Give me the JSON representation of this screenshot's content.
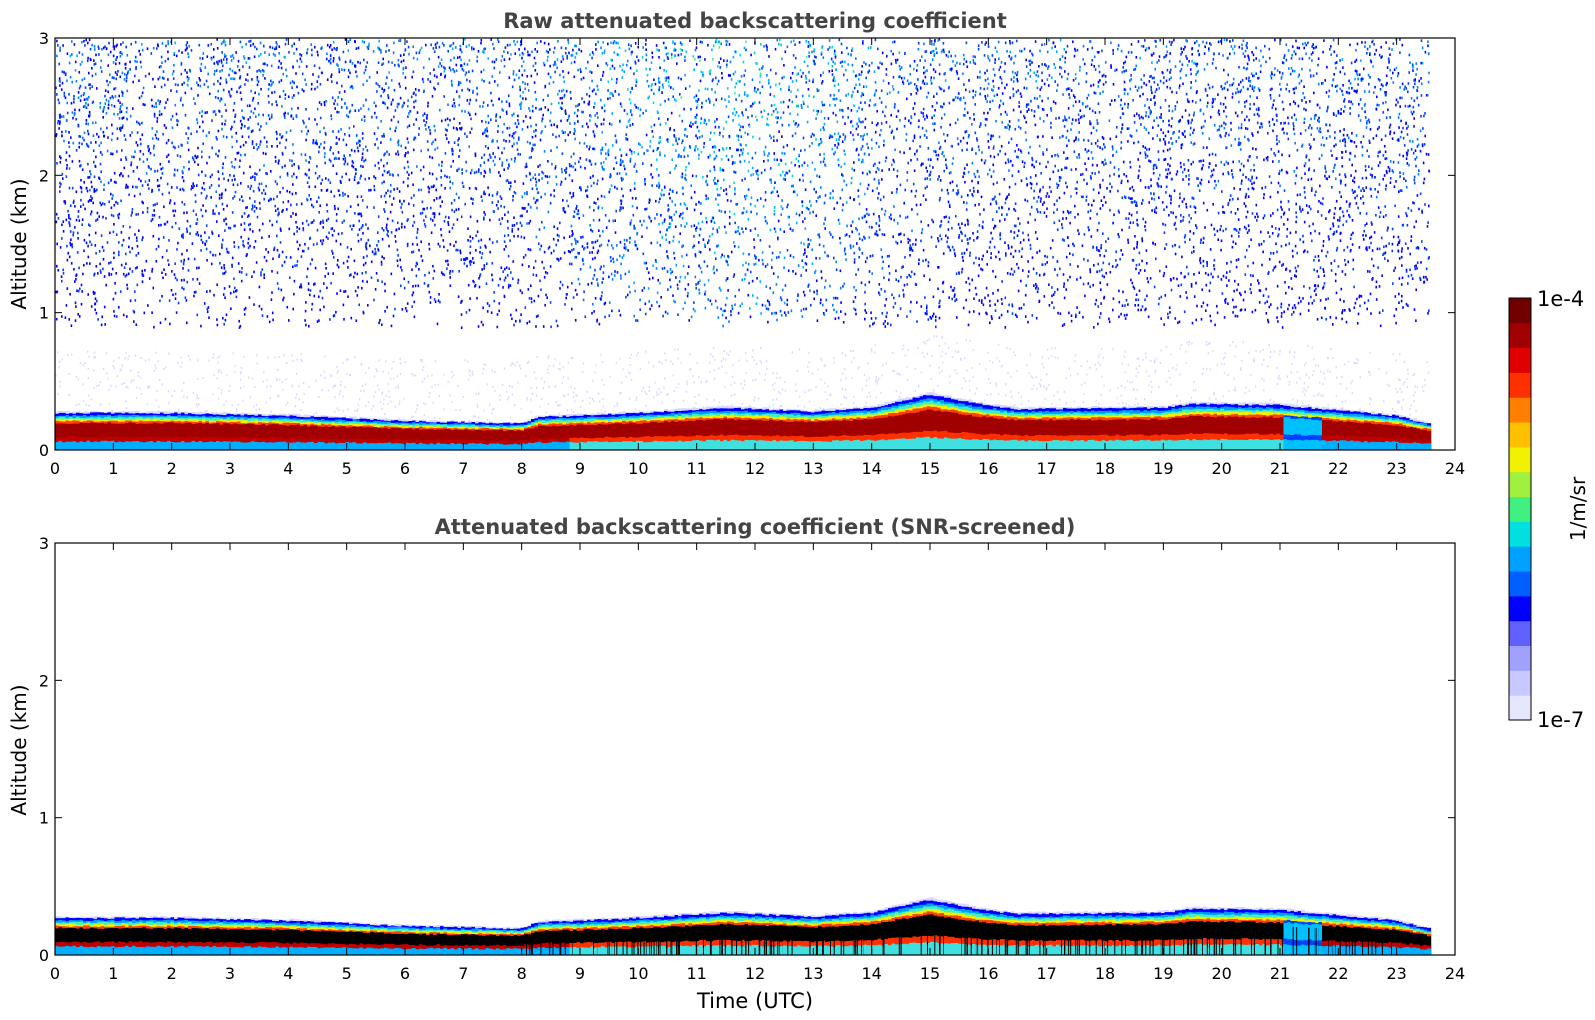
{
  "chart_data": [
    {
      "type": "heatmap",
      "title": "Raw attenuated backscattering coefficient",
      "xlabel": "",
      "ylabel": "Altitude (km)",
      "xlim": [
        0,
        24
      ],
      "ylim": [
        0,
        3
      ],
      "x_ticks": [
        "0",
        "1",
        "2",
        "3",
        "4",
        "5",
        "6",
        "7",
        "8",
        "9",
        "10",
        "11",
        "12",
        "13",
        "14",
        "15",
        "16",
        "17",
        "18",
        "19",
        "20",
        "21",
        "22",
        "23",
        "24"
      ],
      "y_ticks": [
        "0",
        "1",
        "2",
        "3"
      ],
      "data_end_hour": 23.55,
      "features": {
        "boundary_layer_top_km": [
          [
            0,
            0.28
          ],
          [
            2,
            0.28
          ],
          [
            4,
            0.26
          ],
          [
            6,
            0.22
          ],
          [
            8,
            0.2
          ],
          [
            8.3,
            0.25
          ],
          [
            9,
            0.26
          ],
          [
            10,
            0.28
          ],
          [
            11.5,
            0.32
          ],
          [
            13,
            0.29
          ],
          [
            14,
            0.32
          ],
          [
            15,
            0.42
          ],
          [
            15.8,
            0.35
          ],
          [
            16.5,
            0.31
          ],
          [
            19,
            0.32
          ],
          [
            19.5,
            0.35
          ],
          [
            21,
            0.34
          ],
          [
            22,
            0.3
          ],
          [
            23,
            0.26
          ],
          [
            23.55,
            0.2
          ]
        ],
        "noise_floor_km": 0.9,
        "max_intensity_hours": [
          9.5,
          13.5
        ]
      }
    },
    {
      "type": "heatmap",
      "title": "Attenuated backscattering coefficient (SNR-screened)",
      "xlabel": "Time (UTC)",
      "ylabel": "Altitude (km)",
      "xlim": [
        0,
        24
      ],
      "ylim": [
        0,
        3
      ],
      "x_ticks": [
        "0",
        "1",
        "2",
        "3",
        "4",
        "5",
        "6",
        "7",
        "8",
        "9",
        "10",
        "11",
        "12",
        "13",
        "14",
        "15",
        "16",
        "17",
        "18",
        "19",
        "20",
        "21",
        "22",
        "23",
        "24"
      ],
      "y_ticks": [
        "0",
        "1",
        "2",
        "3"
      ],
      "data_end_hour": 23.55,
      "features": {
        "saturated_color": "#000000"
      }
    }
  ],
  "colorbar": {
    "label": "1/m/sr",
    "max_label": "1e-4",
    "min_label": "1e-7",
    "colors": [
      "#e6e6ff",
      "#c8c8ff",
      "#a0a0ff",
      "#6060ff",
      "#0000ff",
      "#0060ff",
      "#00a0ff",
      "#00e0e0",
      "#40f080",
      "#a0f040",
      "#f0f000",
      "#ffc000",
      "#ff8000",
      "#ff3000",
      "#e00000",
      "#a00000",
      "#700000"
    ]
  }
}
